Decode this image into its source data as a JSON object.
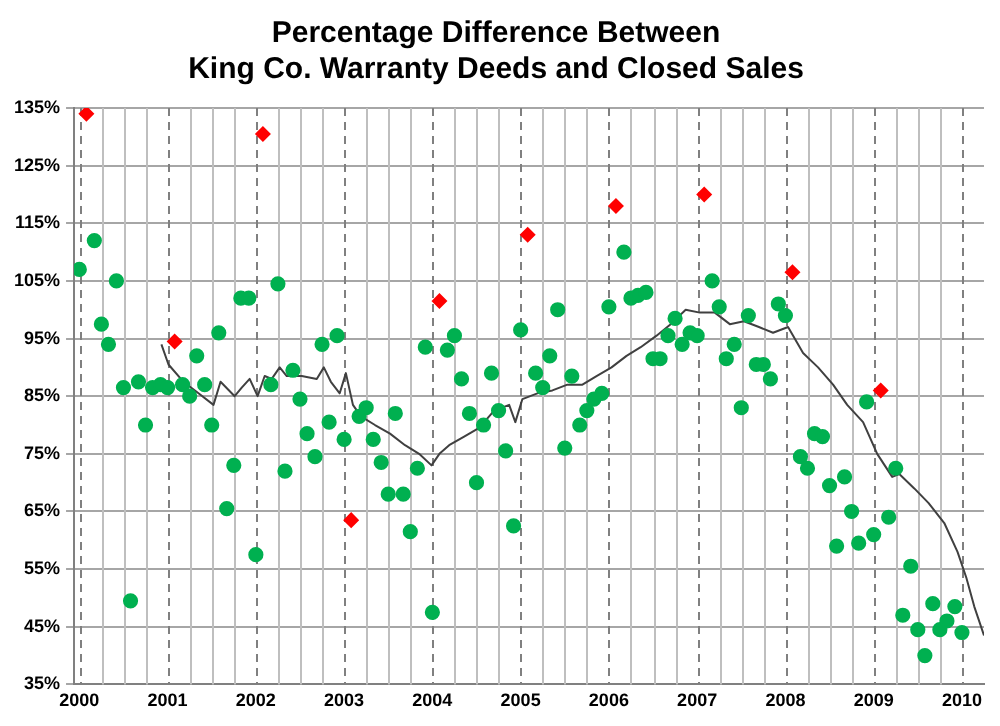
{
  "chart_data": {
    "type": "scatter",
    "title": "Percentage Difference Between\nKing Co. Warranty Deeds and Closed Sales",
    "xlim": [
      1999.94,
      2010.25
    ],
    "xticks": [
      2000,
      {
        "value": 2000.25,
        "label": null
      },
      {
        "value": 2000.5,
        "label": null
      },
      {
        "value": 2000.75,
        "label": null
      },
      2001,
      {
        "value": 2001.25,
        "label": null
      },
      {
        "value": 2001.5,
        "label": null
      },
      {
        "value": 2001.75,
        "label": null
      },
      2002,
      {
        "value": 2002.25,
        "label": null
      },
      {
        "value": 2002.5,
        "label": null
      },
      {
        "value": 2002.75,
        "label": null
      },
      2003,
      {
        "value": 2003.25,
        "label": null
      },
      {
        "value": 2003.5,
        "label": null
      },
      {
        "value": 2003.75,
        "label": null
      },
      2004,
      {
        "value": 2004.25,
        "label": null
      },
      {
        "value": 2004.5,
        "label": null
      },
      {
        "value": 2004.75,
        "label": null
      },
      2005,
      {
        "value": 2005.25,
        "label": null
      },
      {
        "value": 2005.5,
        "label": null
      },
      {
        "value": 2005.75,
        "label": null
      },
      2006,
      {
        "value": 2006.25,
        "label": null
      },
      {
        "value": 2006.5,
        "label": null
      },
      {
        "value": 2006.75,
        "label": null
      },
      2007,
      {
        "value": 2007.25,
        "label": null
      },
      {
        "value": 2007.5,
        "label": null
      },
      {
        "value": 2007.75,
        "label": null
      },
      2008,
      {
        "value": 2008.25,
        "label": null
      },
      {
        "value": 2008.5,
        "label": null
      },
      {
        "value": 2008.75,
        "label": null
      },
      2009,
      {
        "value": 2009.25,
        "label": null
      },
      {
        "value": 2009.5,
        "label": null
      },
      {
        "value": 2009.75,
        "label": null
      },
      2010
    ],
    "ylim": [
      35,
      135
    ],
    "yticks": [
      {
        "value": 35,
        "label": "35%"
      },
      {
        "value": 45,
        "label": "45%"
      },
      {
        "value": 55,
        "label": "55%"
      },
      {
        "value": 65,
        "label": "65%"
      },
      {
        "value": 75,
        "label": "75%"
      },
      {
        "value": 85,
        "label": "85%"
      },
      {
        "value": 95,
        "label": "95%"
      },
      {
        "value": 105,
        "label": "105%"
      },
      {
        "value": 115,
        "label": "115%"
      },
      {
        "value": 125,
        "label": "125%"
      },
      {
        "value": 135,
        "label": "135%"
      }
    ],
    "grid": true,
    "series": [
      {
        "type": "scatter",
        "marker": "circle",
        "color": "#00b050",
        "x": [
          2000,
          2000.17,
          2000.25,
          2000.33,
          2000.42,
          2000.5,
          2000.58,
          2000.67,
          2000.75,
          2000.83,
          2000.92,
          2001,
          2001.17,
          2001.25,
          2001.33,
          2001.42,
          2001.5,
          2001.58,
          2001.67,
          2001.75,
          2001.83,
          2001.92,
          2002,
          2002.17,
          2002.25,
          2002.33,
          2002.42,
          2002.5,
          2002.58,
          2002.67,
          2002.75,
          2002.83,
          2002.92,
          2003,
          2003.17,
          2003.25,
          2003.33,
          2003.42,
          2003.5,
          2003.58,
          2003.67,
          2003.75,
          2003.83,
          2003.92,
          2004,
          2004.17,
          2004.25,
          2004.33,
          2004.42,
          2004.5,
          2004.58,
          2004.67,
          2004.75,
          2004.83,
          2004.92,
          2005,
          2005.17,
          2005.25,
          2005.33,
          2005.42,
          2005.5,
          2005.58,
          2005.67,
          2005.75,
          2005.83,
          2005.92,
          2006,
          2006.17,
          2006.25,
          2006.33,
          2006.42,
          2006.5,
          2006.58,
          2006.67,
          2006.75,
          2006.83,
          2006.92,
          2007,
          2007.17,
          2007.25,
          2007.33,
          2007.42,
          2007.5,
          2007.58,
          2007.67,
          2007.75,
          2007.83,
          2007.92,
          2008,
          2008.17,
          2008.25,
          2008.33,
          2008.42,
          2008.5,
          2008.58,
          2008.67,
          2008.75,
          2008.83,
          2008.92,
          2009,
          2009.17,
          2009.25,
          2009.33,
          2009.42,
          2009.5,
          2009.58,
          2009.67,
          2009.75,
          2009.83,
          2009.92,
          2010
        ],
        "values": [
          107,
          112,
          97.5,
          94,
          105,
          86.5,
          49.5,
          87.5,
          80,
          86.5,
          87,
          86.5,
          87,
          85,
          92,
          87,
          80,
          96,
          65.5,
          73,
          102,
          102,
          57.5,
          87,
          104.5,
          72,
          89.5,
          84.5,
          78.5,
          74.5,
          94,
          80.5,
          95.5,
          77.5,
          81.5,
          83,
          77.5,
          73.5,
          68,
          82,
          68,
          61.5,
          72.5,
          93.5,
          47.5,
          93,
          95.5,
          88,
          82,
          70,
          80,
          89,
          82.5,
          75.5,
          62.5,
          96.5,
          89,
          86.5,
          92,
          100,
          76,
          88.5,
          80,
          82.5,
          84.5,
          85.5,
          100.5,
          110,
          102,
          102.5,
          103,
          91.5,
          91.5,
          95.5,
          98.5,
          94,
          96,
          95.5,
          105,
          100.5,
          91.5,
          94,
          83,
          99,
          90.5,
          90.5,
          88,
          101,
          99,
          74.5,
          72.5,
          78.5,
          78,
          69.5,
          59,
          71,
          65,
          59.5,
          84,
          61,
          64,
          72.5,
          47,
          55.5,
          44.5,
          40,
          49,
          44.5,
          46,
          48.5,
          44
        ]
      },
      {
        "type": "scatter",
        "marker": "diamond",
        "color": "#ff0000",
        "x": [
          2000.08,
          2001.08,
          2002.08,
          2003.08,
          2004.08,
          2005.08,
          2006.08,
          2007.08,
          2008.08,
          2009.08
        ],
        "values": [
          134,
          94.5,
          130.5,
          63.5,
          101.5,
          113,
          118,
          120,
          106.5,
          86
        ]
      },
      {
        "type": "line",
        "marker": "none",
        "color": "#404040",
        "x": [
          2000.93,
          2001.01,
          2001.18,
          2001.35,
          2001.52,
          2001.6,
          2001.76,
          2001.84,
          2001.93,
          2002.02,
          2002.1,
          2002.18,
          2002.27,
          2002.35,
          2002.52,
          2002.69,
          2002.77,
          2002.85,
          2002.95,
          2003.02,
          2003.1,
          2003.19,
          2003.35,
          2003.52,
          2003.69,
          2003.85,
          2003.99,
          2004.08,
          2004.19,
          2004.36,
          2004.53,
          2004.7,
          2004.87,
          2004.94,
          2005.02,
          2005.19,
          2005.36,
          2005.53,
          2005.7,
          2005.86,
          2006.03,
          2006.2,
          2006.36,
          2006.54,
          2006.7,
          2006.87,
          2007.03,
          2007.2,
          2007.37,
          2007.53,
          2007.7,
          2007.86,
          2008.03,
          2008.2,
          2008.37,
          2008.54,
          2008.7,
          2008.88,
          2009.04,
          2009.21,
          2009.29,
          2009.46,
          2009.62,
          2009.8,
          2009.95,
          2010.05,
          2010.14,
          2010.25
        ],
        "values": [
          94,
          90.5,
          87.5,
          85.5,
          83.5,
          87.5,
          85,
          86.5,
          88,
          85,
          88.5,
          88,
          90,
          88.5,
          88.5,
          88,
          90,
          87.5,
          85.5,
          89,
          83.5,
          81.5,
          80,
          78.5,
          76.5,
          75,
          73,
          75,
          76.5,
          78,
          79.5,
          82.5,
          83.5,
          80.5,
          84.5,
          85.5,
          86,
          87,
          87,
          88.5,
          90,
          92,
          93.5,
          95.5,
          97.5,
          100,
          99.5,
          99.5,
          97.5,
          98,
          97,
          96,
          97,
          92.5,
          90,
          87,
          83.5,
          80.5,
          75,
          71,
          71.5,
          69,
          66.5,
          63,
          58,
          53.5,
          48.5,
          43.5
        ]
      }
    ]
  }
}
